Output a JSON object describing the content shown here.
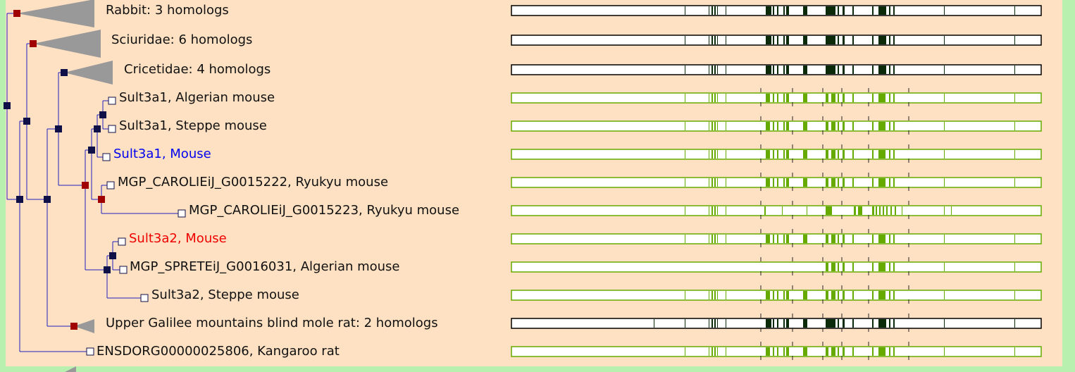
{
  "tree": {
    "leaves": [
      {
        "label": "Rabbit: 3 homologs"
      },
      {
        "label": "Sciuridae: 6 homologs"
      },
      {
        "label": "Cricetidae: 4 homologs"
      },
      {
        "label": "Sult3a1, Algerian mouse"
      },
      {
        "label": "Sult3a1, Steppe mouse"
      },
      {
        "label": "Sult3a1, Mouse"
      },
      {
        "label": "MGP_CAROLIEiJ_G0015222, Ryukyu mouse"
      },
      {
        "label": "MGP_CAROLIEiJ_G0015223, Ryukyu mouse"
      },
      {
        "label": "Sult3a2, Mouse"
      },
      {
        "label": "MGP_SPRETEiJ_G0016031, Algerian mouse"
      },
      {
        "label": "Sult3a2, Steppe mouse"
      },
      {
        "label": "Upper Galilee mountains blind mole rat: 2 homologs"
      },
      {
        "label": "ENSDORG00000025806, Kangaroo rat"
      }
    ]
  }
}
